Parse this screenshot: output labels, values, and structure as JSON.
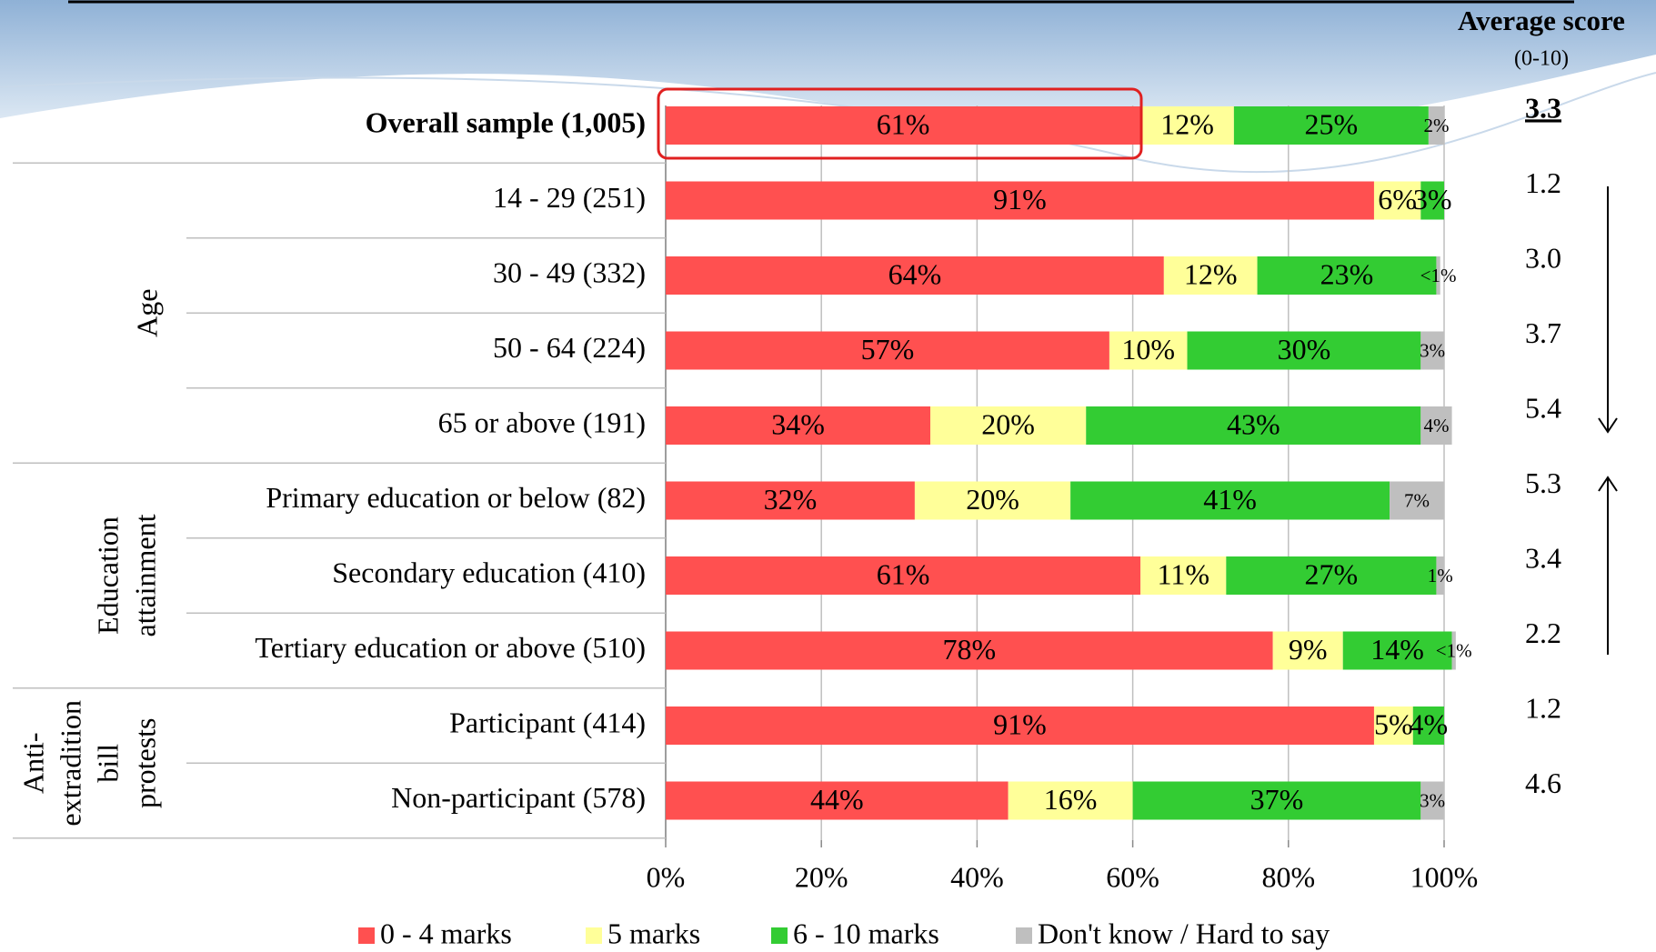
{
  "chart_data": {
    "type": "stacked-barh",
    "categories": [
      "Overall sample (1,005)",
      "14 - 29 (251)",
      "30 - 49 (332)",
      "50 - 64 (224)",
      "65 or above (191)",
      "Primary education or below (82)",
      "Secondary education (410)",
      "Tertiary education or above (510)",
      "Participant (414)",
      "Non-participant (578)"
    ],
    "groups": [
      {
        "label_lines": [
          "Age"
        ],
        "rows": [
          1,
          4
        ]
      },
      {
        "label_lines": [
          "Education",
          "attainment"
        ],
        "rows": [
          5,
          7
        ]
      },
      {
        "label_lines": [
          "Anti-",
          "extradition",
          "bill",
          "protests"
        ],
        "rows": [
          8,
          9
        ]
      }
    ],
    "series": [
      {
        "name": "0 - 4 marks",
        "color": "#ff5050",
        "values": [
          61,
          91,
          64,
          57,
          34,
          32,
          61,
          78,
          91,
          44
        ],
        "value_labels": [
          "61%",
          "91%",
          "64%",
          "57%",
          "34%",
          "32%",
          "61%",
          "78%",
          "91%",
          "44%"
        ]
      },
      {
        "name": "5 marks",
        "color": "#ffff99",
        "values": [
          12,
          6,
          12,
          10,
          20,
          20,
          11,
          9,
          5,
          16
        ],
        "value_labels": [
          "12%",
          "6%",
          "12%",
          "10%",
          "20%",
          "20%",
          "11%",
          "9%",
          "5%",
          "16%"
        ]
      },
      {
        "name": "6 - 10 marks",
        "color": "#33cc33",
        "values": [
          25,
          3,
          23,
          30,
          43,
          41,
          27,
          14,
          4,
          37
        ],
        "value_labels": [
          "25%",
          "3%",
          "23%",
          "30%",
          "43%",
          "41%",
          "27%",
          "14%",
          "4%",
          "37%"
        ]
      },
      {
        "name": "Don't know / Hard to say",
        "color": "#bfbfbf",
        "values": [
          2,
          null,
          0.5,
          3,
          4,
          7,
          1,
          0.5,
          null,
          3
        ],
        "value_labels": [
          "2%",
          null,
          "<1%",
          "3%",
          "4%",
          "7%",
          "1%",
          "<1%",
          null,
          "3%"
        ]
      }
    ],
    "xlim": [
      0,
      100
    ],
    "xticks": [
      {
        "value": 0,
        "label": "0%"
      },
      {
        "value": 20,
        "label": "20%"
      },
      {
        "value": 40,
        "label": "40%"
      },
      {
        "value": 60,
        "label": "60%"
      },
      {
        "value": 80,
        "label": "80%"
      },
      {
        "value": 100,
        "label": "100%"
      }
    ],
    "grid": true,
    "legend": "bottom",
    "average_score": {
      "title": "Average score",
      "subtitle": "(0-10)",
      "labels": [
        "3.3",
        "1.2",
        "3.0",
        "3.7",
        "5.4",
        "5.3",
        "3.4",
        "2.2",
        "1.2",
        "4.6"
      ]
    }
  }
}
